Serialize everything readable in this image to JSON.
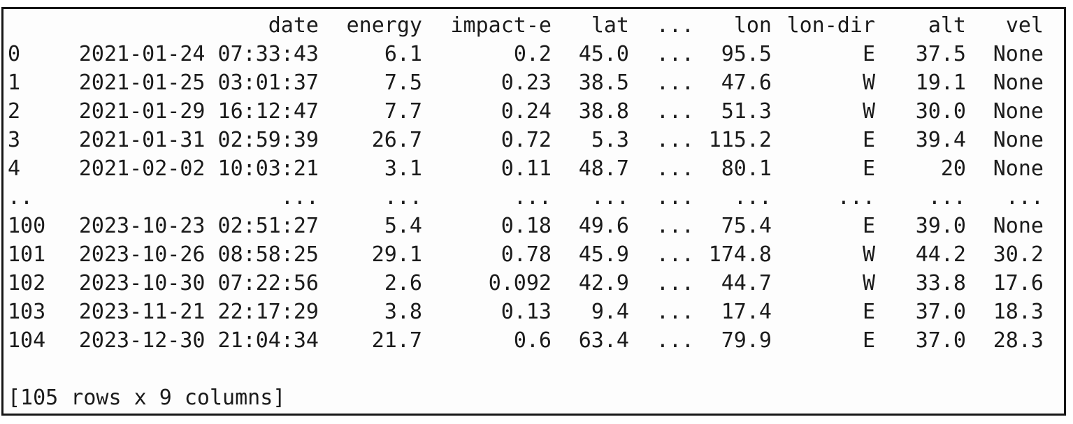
{
  "console": {
    "columns": [
      "date",
      "energy",
      "impact-e",
      "lat",
      "...",
      "lon",
      "lon-dir",
      "alt",
      "vel"
    ],
    "rows": [
      {
        "index": "0",
        "cells": [
          "2021-01-24 07:33:43",
          "6.1",
          "0.2",
          "45.0",
          "...",
          "95.5",
          "E",
          "37.5",
          "None"
        ]
      },
      {
        "index": "1",
        "cells": [
          "2021-01-25 03:01:37",
          "7.5",
          "0.23",
          "38.5",
          "...",
          "47.6",
          "W",
          "19.1",
          "None"
        ]
      },
      {
        "index": "2",
        "cells": [
          "2021-01-29 16:12:47",
          "7.7",
          "0.24",
          "38.8",
          "...",
          "51.3",
          "W",
          "30.0",
          "None"
        ]
      },
      {
        "index": "3",
        "cells": [
          "2021-01-31 02:59:39",
          "26.7",
          "0.72",
          "5.3",
          "...",
          "115.2",
          "E",
          "39.4",
          "None"
        ]
      },
      {
        "index": "4",
        "cells": [
          "2021-02-02 10:03:21",
          "3.1",
          "0.11",
          "48.7",
          "...",
          "80.1",
          "E",
          "20",
          "None"
        ]
      },
      {
        "index": "..",
        "cells": [
          "...",
          "...",
          "...",
          "...",
          "...",
          "...",
          "...",
          "...",
          "..."
        ]
      },
      {
        "index": "100",
        "cells": [
          "2023-10-23 02:51:27",
          "5.4",
          "0.18",
          "49.6",
          "...",
          "75.4",
          "E",
          "39.0",
          "None"
        ]
      },
      {
        "index": "101",
        "cells": [
          "2023-10-26 08:58:25",
          "29.1",
          "0.78",
          "45.9",
          "...",
          "174.8",
          "W",
          "44.2",
          "30.2"
        ]
      },
      {
        "index": "102",
        "cells": [
          "2023-10-30 07:22:56",
          "2.6",
          "0.092",
          "42.9",
          "...",
          "44.7",
          "W",
          "33.8",
          "17.6"
        ]
      },
      {
        "index": "103",
        "cells": [
          "2023-11-21 22:17:29",
          "3.8",
          "0.13",
          "9.4",
          "...",
          "17.4",
          "E",
          "37.0",
          "18.3"
        ]
      },
      {
        "index": "104",
        "cells": [
          "2023-12-30 21:04:34",
          "21.7",
          "0.6",
          "63.4",
          "...",
          "79.9",
          "E",
          "37.0",
          "28.3"
        ]
      }
    ],
    "footer": "[105 rows x 9 columns]",
    "colors": {
      "text": "#1b1b1b",
      "border": "#161616",
      "background": "#fdfdfd"
    }
  }
}
